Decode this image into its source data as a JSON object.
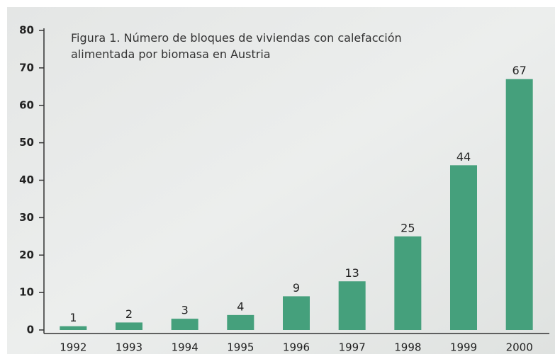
{
  "chart_data": {
    "type": "bar",
    "title": "Figura 1. Número de bloques de viviendas con calefacción alimentada por biomasa en Austria",
    "categories": [
      "1992",
      "1993",
      "1994",
      "1995",
      "1996",
      "1997",
      "1998",
      "1999",
      "2000"
    ],
    "values": [
      1,
      2,
      3,
      4,
      9,
      13,
      25,
      44,
      67
    ],
    "color": "#45a07c",
    "ylim": [
      0,
      80
    ],
    "yticks": [
      0,
      10,
      20,
      30,
      40,
      50,
      60,
      70,
      80
    ]
  }
}
